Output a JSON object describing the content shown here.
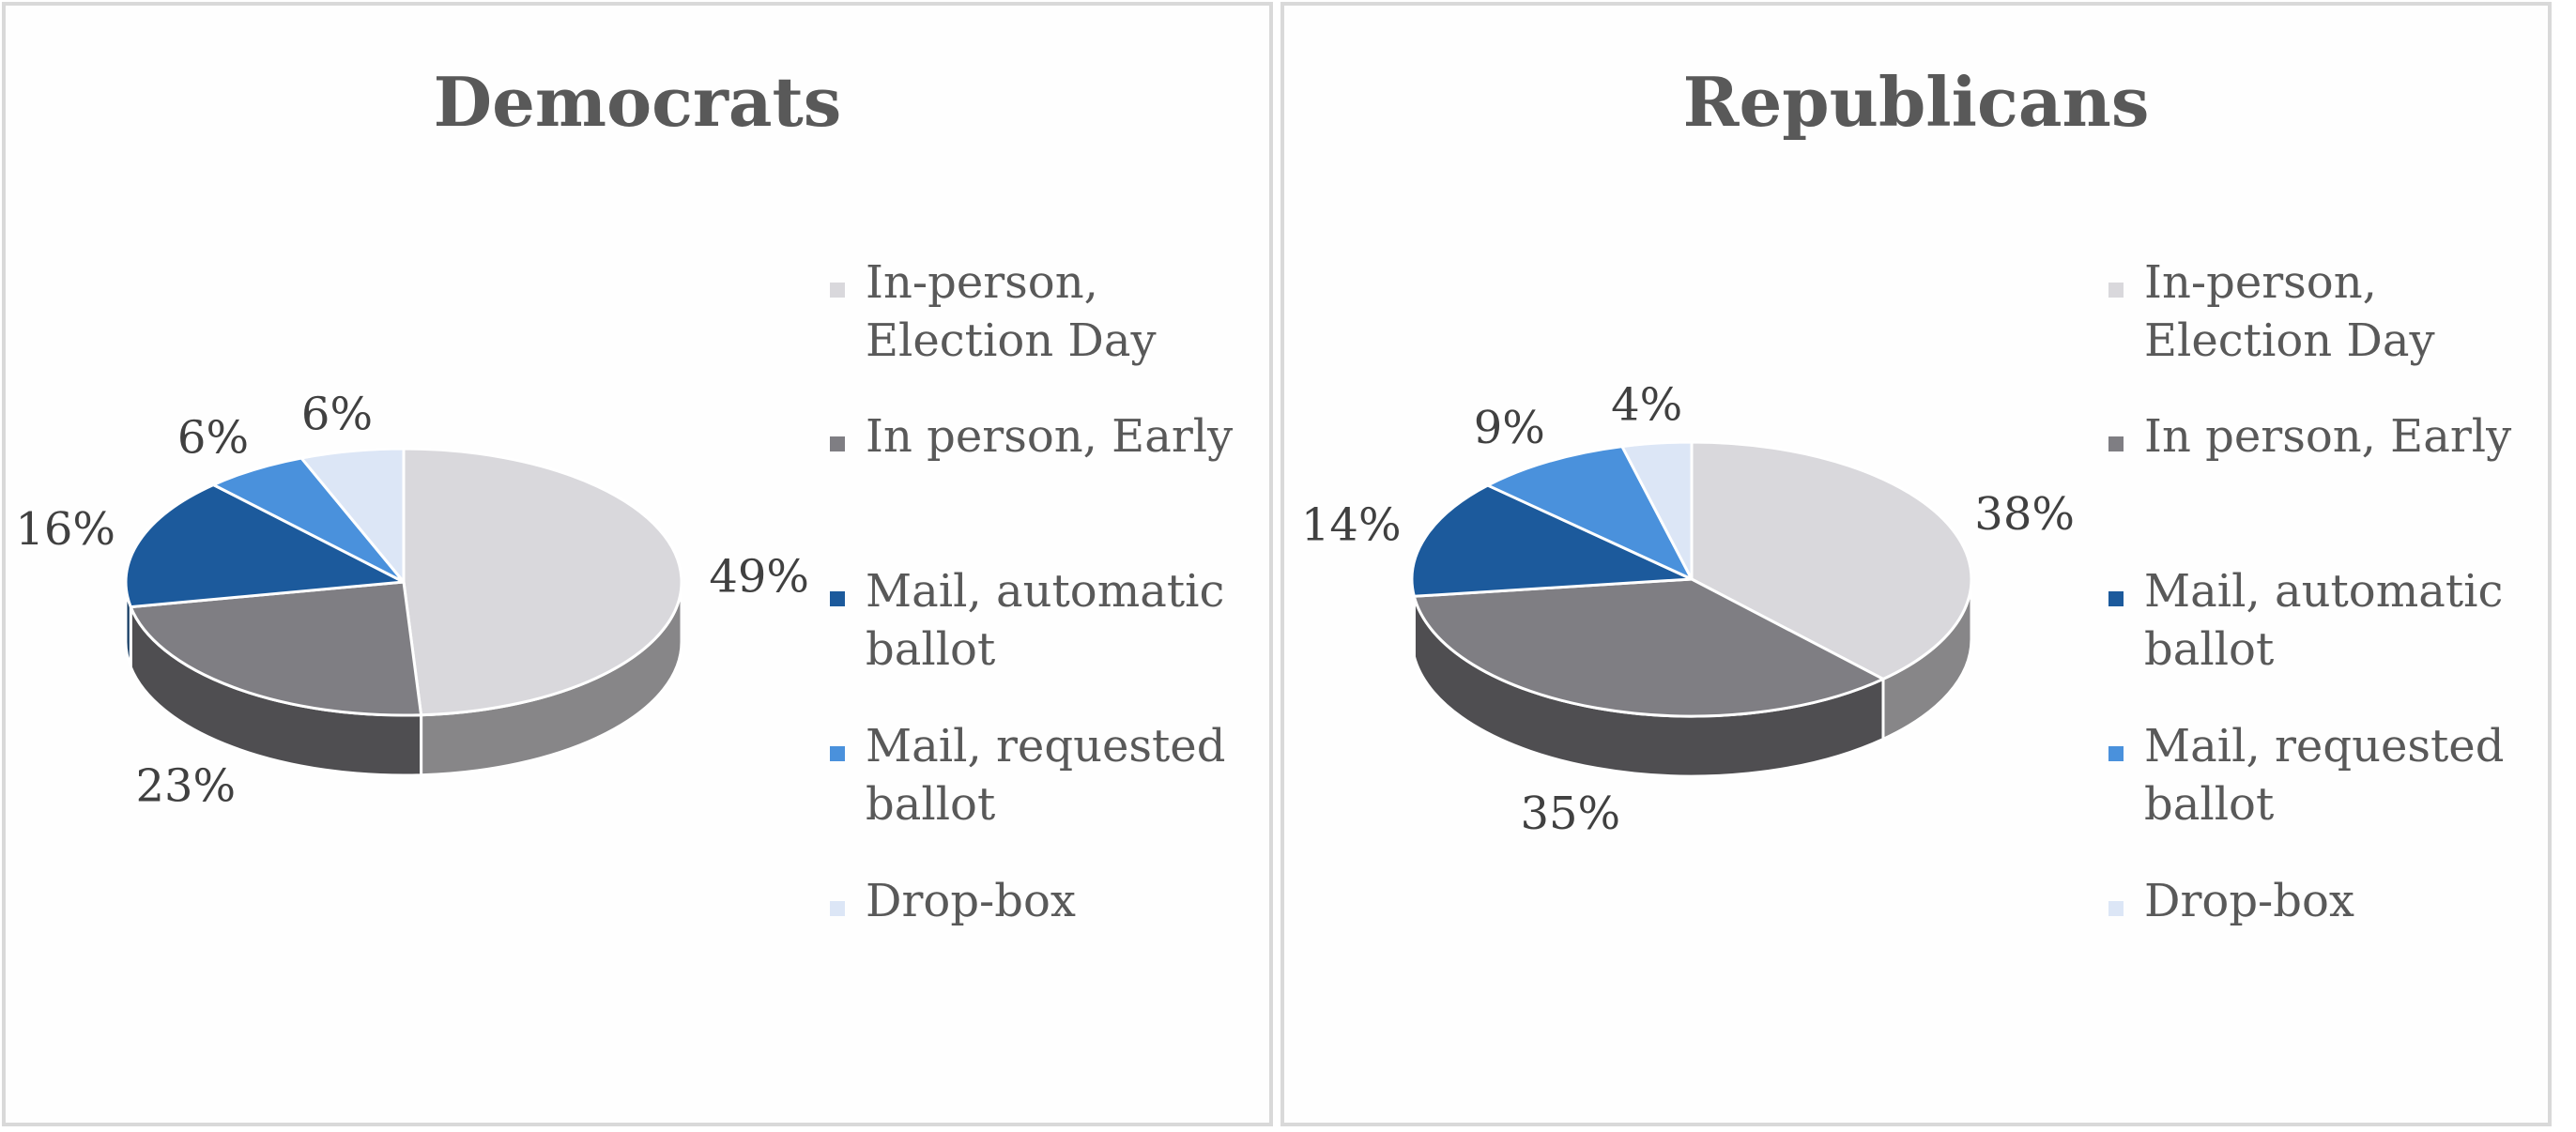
{
  "chart_data": [
    {
      "type": "pie",
      "title": "Democrats",
      "categories": [
        "In-person, Election Day",
        "In person, Early",
        "Mail, automatic ballot",
        "Mail, requested ballot",
        "Drop-box"
      ],
      "values": [
        49,
        23,
        16,
        6,
        6
      ],
      "value_labels": [
        "49%",
        "23%",
        "16%",
        "6%",
        "6%"
      ],
      "colors": [
        "#d9d8dc",
        "#7f7e83",
        "#1c5a9c",
        "#4a91dc",
        "#dce6f6"
      ],
      "legend": "right",
      "style": "3d"
    },
    {
      "type": "pie",
      "title": "Republicans",
      "categories": [
        "In-person, Election Day",
        "In person, Early",
        "Mail, automatic ballot",
        "Mail, requested ballot",
        "Drop-box"
      ],
      "values": [
        38,
        35,
        14,
        9,
        4
      ],
      "value_labels": [
        "38%",
        "35%",
        "14%",
        "9%",
        "4%"
      ],
      "colors": [
        "#d9d8dc",
        "#7f7e83",
        "#1c5a9c",
        "#4a91dc",
        "#dce6f6"
      ],
      "legend": "right",
      "style": "3d"
    }
  ]
}
